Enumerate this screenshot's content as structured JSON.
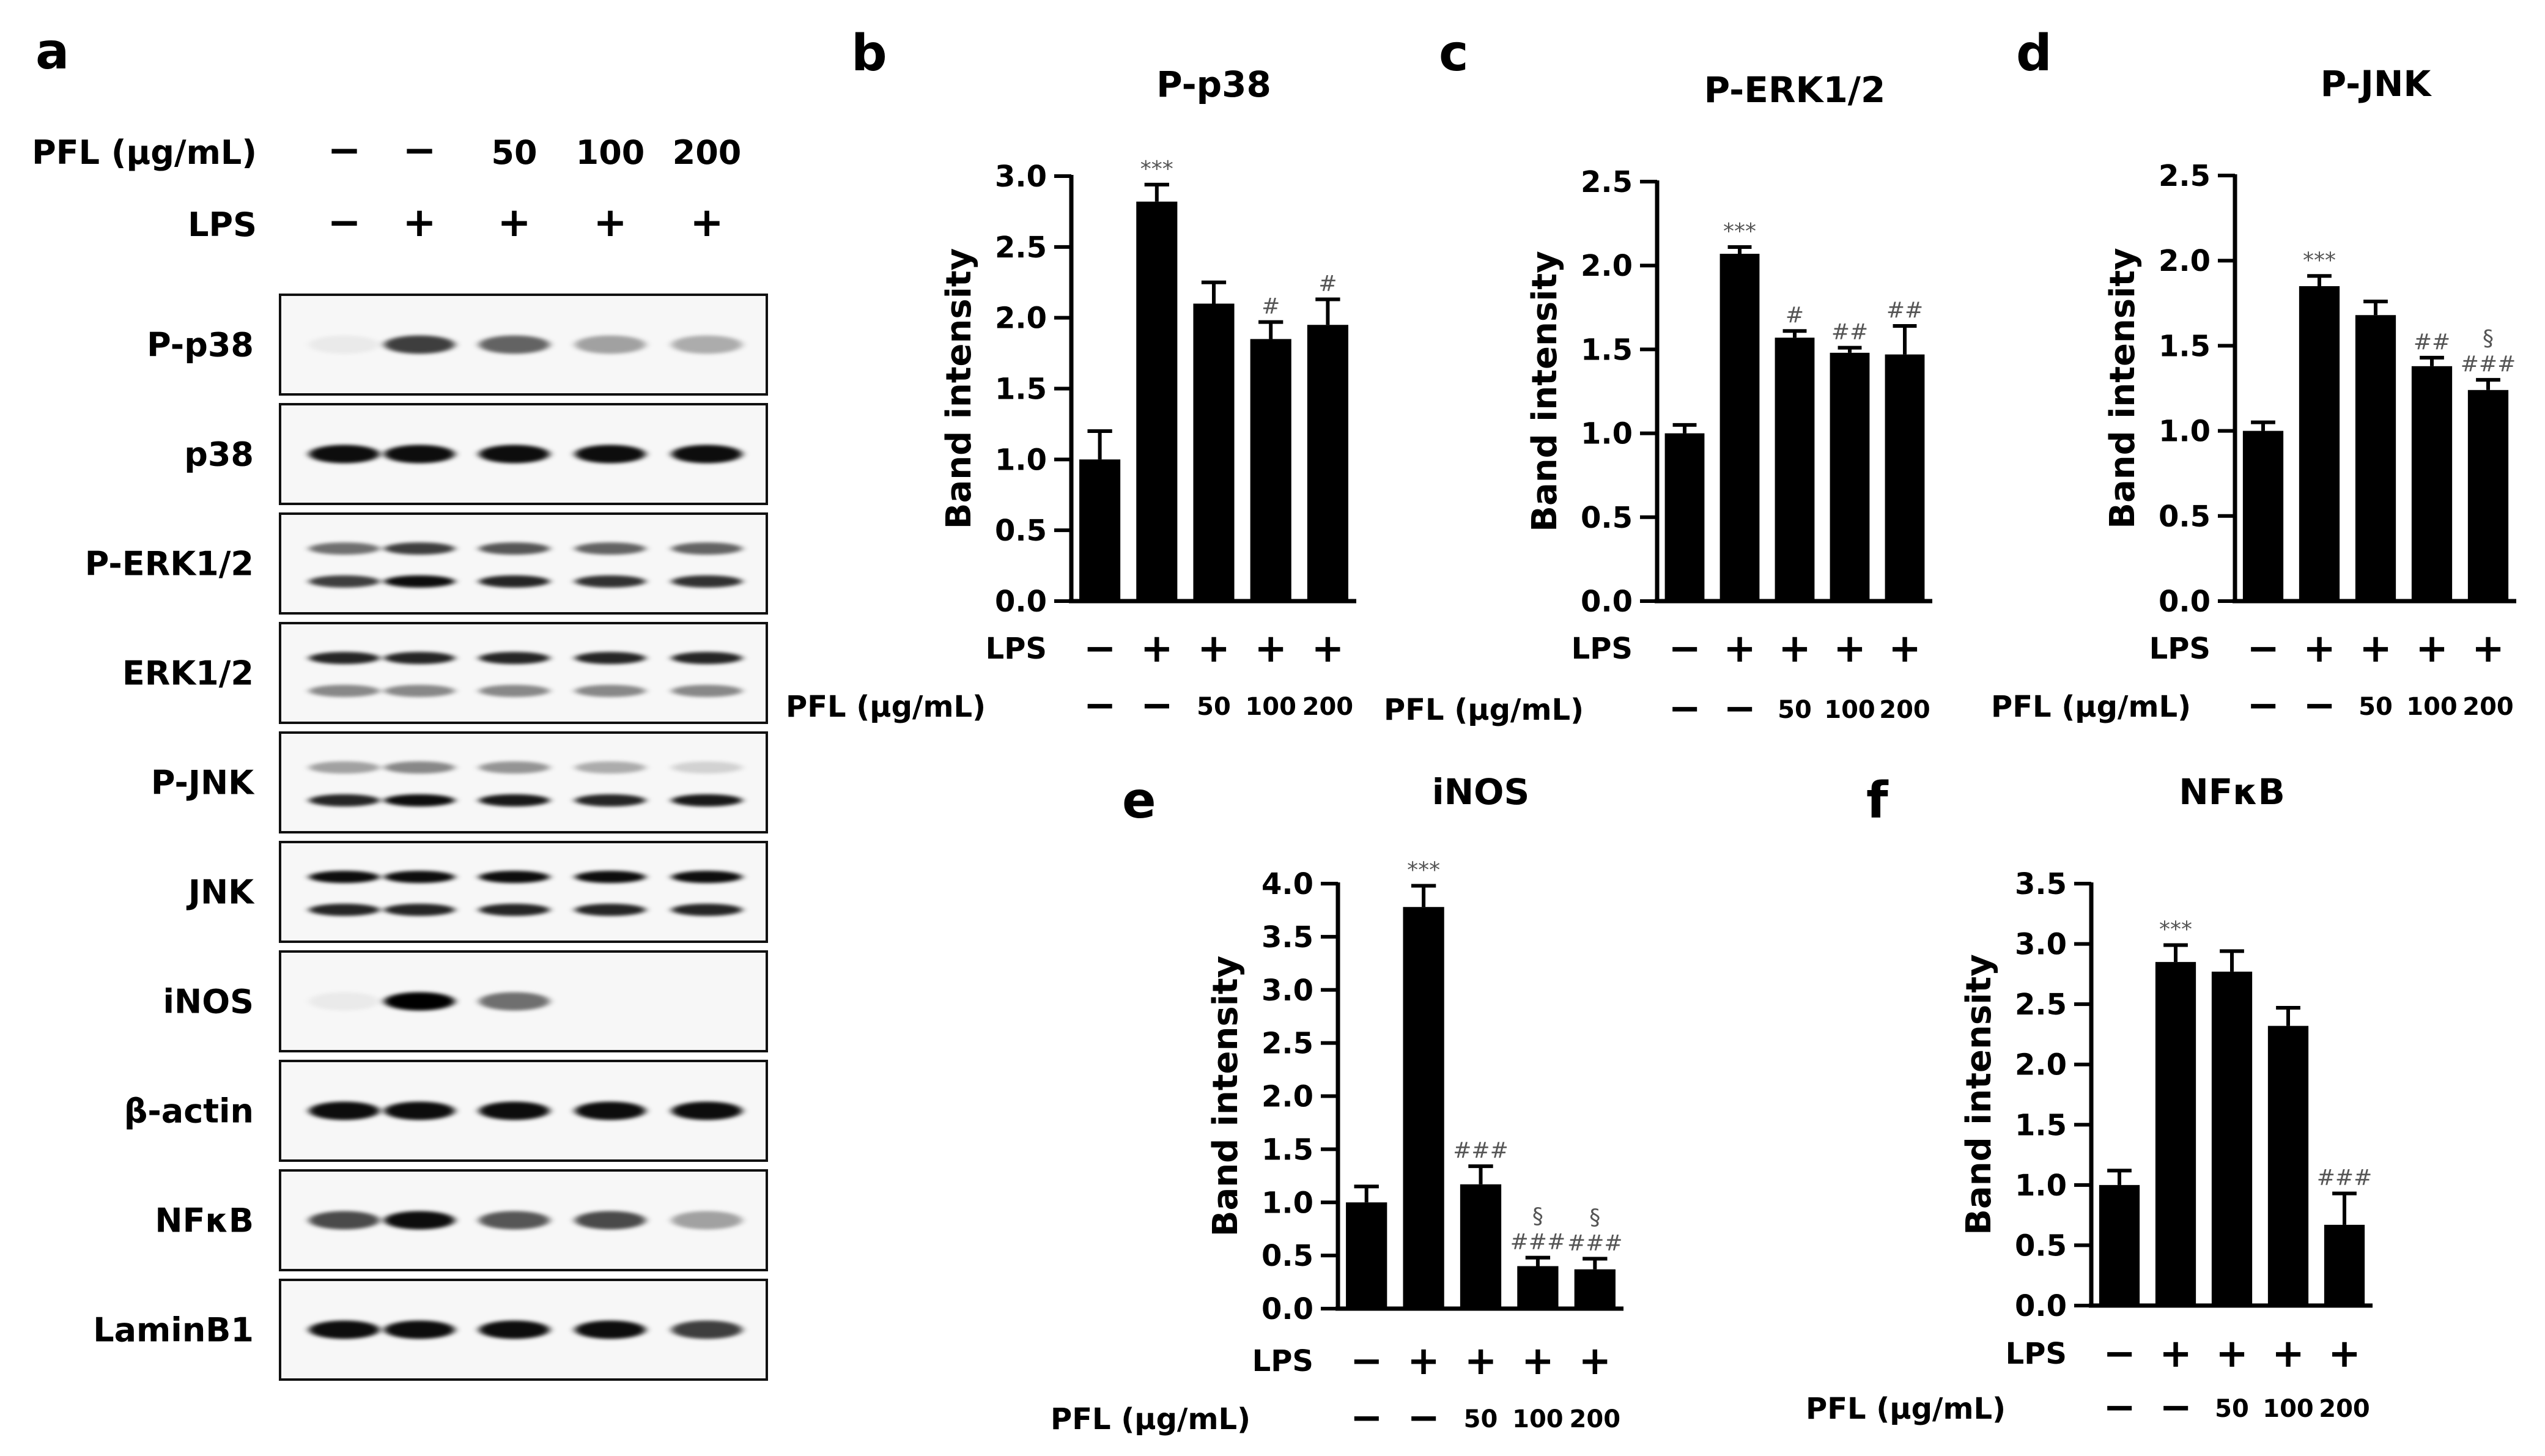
{
  "western_blot": {
    "panel_letter": "a",
    "treatment_rows": [
      {
        "label": "PFL (μg/mL)",
        "values": [
          "−",
          "−",
          "50",
          "100",
          "200"
        ]
      },
      {
        "label": "LPS",
        "values": [
          "−",
          "+",
          "+",
          "+",
          "+"
        ]
      }
    ],
    "blots": [
      {
        "label": "P-p38",
        "bands": [
          [
            0.05
          ],
          [
            0.75
          ],
          [
            0.6
          ],
          [
            0.35
          ],
          [
            0.3
          ]
        ]
      },
      {
        "label": "p38",
        "bands": [
          [
            0.95
          ],
          [
            0.95
          ],
          [
            0.95
          ],
          [
            0.95
          ],
          [
            0.95
          ]
        ]
      },
      {
        "label": "P-ERK1/2",
        "bands": [
          [
            0.55,
            0.75
          ],
          [
            0.75,
            0.95
          ],
          [
            0.65,
            0.85
          ],
          [
            0.6,
            0.8
          ],
          [
            0.6,
            0.8
          ]
        ]
      },
      {
        "label": "ERK1/2",
        "bands": [
          [
            0.85,
            0.45
          ],
          [
            0.85,
            0.45
          ],
          [
            0.85,
            0.45
          ],
          [
            0.85,
            0.45
          ],
          [
            0.85,
            0.45
          ]
        ]
      },
      {
        "label": "P-JNK",
        "bands": [
          [
            0.35,
            0.85
          ],
          [
            0.45,
            0.95
          ],
          [
            0.4,
            0.9
          ],
          [
            0.3,
            0.85
          ],
          [
            0.15,
            0.9
          ]
        ]
      },
      {
        "label": "JNK",
        "bands": [
          [
            0.95,
            0.85
          ],
          [
            0.95,
            0.85
          ],
          [
            0.95,
            0.85
          ],
          [
            0.95,
            0.85
          ],
          [
            0.95,
            0.85
          ]
        ]
      },
      {
        "label": "iNOS",
        "bands": [
          [
            0.05
          ],
          [
            1.0
          ],
          [
            0.55
          ],
          [
            0.0
          ],
          [
            0.0
          ]
        ]
      },
      {
        "label": "β-actin",
        "bands": [
          [
            0.95
          ],
          [
            0.95
          ],
          [
            0.95
          ],
          [
            0.95
          ],
          [
            0.95
          ]
        ]
      },
      {
        "label": "NFκB",
        "bands": [
          [
            0.7
          ],
          [
            0.95
          ],
          [
            0.65
          ],
          [
            0.7
          ],
          [
            0.35
          ]
        ]
      },
      {
        "label": "LaminB1",
        "bands": [
          [
            0.95
          ],
          [
            0.95
          ],
          [
            0.95
          ],
          [
            0.95
          ],
          [
            0.75
          ]
        ]
      }
    ]
  },
  "colors": {
    "bar": "#000000",
    "annotation": "#555555"
  },
  "chart_data": [
    {
      "panel_letter": "b",
      "type": "bar",
      "title": "P-p38",
      "ylabel": "Band intensity",
      "ylim": [
        0,
        3.0
      ],
      "yticks": [
        "0.0",
        "0.5",
        "1.0",
        "1.5",
        "2.0",
        "2.5",
        "3.0"
      ],
      "values": [
        1.0,
        2.82,
        2.1,
        1.85,
        1.95
      ],
      "errors": [
        0.2,
        0.12,
        0.15,
        0.12,
        0.18
      ],
      "annotations": [
        [],
        [
          "***"
        ],
        [],
        [
          "#"
        ],
        [
          "#"
        ]
      ],
      "lps": [
        "−",
        "+",
        "+",
        "+",
        "+"
      ],
      "pfl": [
        "−",
        "−",
        "50",
        "100",
        "200"
      ],
      "lps_label": "LPS",
      "pfl_label": "PFL (μg/mL)"
    },
    {
      "panel_letter": "c",
      "type": "bar",
      "title": "P-ERK1/2",
      "ylabel": "Band intensity",
      "ylim": [
        0,
        2.5
      ],
      "yticks": [
        "0.0",
        "0.5",
        "1.0",
        "1.5",
        "2.0",
        "2.5"
      ],
      "values": [
        1.0,
        2.07,
        1.57,
        1.48,
        1.47
      ],
      "errors": [
        0.05,
        0.04,
        0.04,
        0.03,
        0.17
      ],
      "annotations": [
        [],
        [
          "***"
        ],
        [
          "#"
        ],
        [
          "##"
        ],
        [
          "##"
        ]
      ],
      "lps": [
        "−",
        "+",
        "+",
        "+",
        "+"
      ],
      "pfl": [
        "−",
        "−",
        "50",
        "100",
        "200"
      ],
      "lps_label": "LPS",
      "pfl_label": "PFL (μg/mL)"
    },
    {
      "panel_letter": "d",
      "type": "bar",
      "title": "P-JNK",
      "ylabel": "Band intensity",
      "ylim": [
        0,
        2.5
      ],
      "yticks": [
        "0.0",
        "0.5",
        "1.0",
        "1.5",
        "2.0",
        "2.5"
      ],
      "values": [
        1.0,
        1.85,
        1.68,
        1.38,
        1.24
      ],
      "errors": [
        0.05,
        0.06,
        0.08,
        0.05,
        0.06
      ],
      "annotations": [
        [],
        [
          "***"
        ],
        [],
        [
          "##"
        ],
        [
          "§",
          "###"
        ]
      ],
      "lps": [
        "−",
        "+",
        "+",
        "+",
        "+"
      ],
      "pfl": [
        "−",
        "−",
        "50",
        "100",
        "200"
      ],
      "lps_label": "LPS",
      "pfl_label": "PFL (μg/mL)"
    },
    {
      "panel_letter": "e",
      "type": "bar",
      "title": "iNOS",
      "ylabel": "Band intensity",
      "ylim": [
        0,
        4.0
      ],
      "yticks": [
        "0.0",
        "0.5",
        "1.0",
        "1.5",
        "2.0",
        "2.5",
        "3.0",
        "3.5",
        "4.0"
      ],
      "values": [
        1.0,
        3.78,
        1.17,
        0.4,
        0.37
      ],
      "errors": [
        0.15,
        0.2,
        0.17,
        0.08,
        0.1
      ],
      "annotations": [
        [],
        [
          "***"
        ],
        [
          "###"
        ],
        [
          "§",
          "###"
        ],
        [
          "§",
          "###"
        ]
      ],
      "lps": [
        "−",
        "+",
        "+",
        "+",
        "+"
      ],
      "pfl": [
        "−",
        "−",
        "50",
        "100",
        "200"
      ],
      "lps_label": "LPS",
      "pfl_label": "PFL (μg/mL)"
    },
    {
      "panel_letter": "f",
      "type": "bar",
      "title": "NFκB",
      "ylabel": "Band intensity",
      "ylim": [
        0,
        3.5
      ],
      "yticks": [
        "0.0",
        "0.5",
        "1.0",
        "1.5",
        "2.0",
        "2.5",
        "3.0",
        "3.5"
      ],
      "values": [
        1.0,
        2.85,
        2.77,
        2.32,
        0.67
      ],
      "errors": [
        0.12,
        0.14,
        0.17,
        0.15,
        0.26
      ],
      "annotations": [
        [],
        [
          "***"
        ],
        [],
        [],
        [
          "###"
        ]
      ],
      "lps": [
        "−",
        "+",
        "+",
        "+",
        "+"
      ],
      "pfl": [
        "−",
        "−",
        "50",
        "100",
        "200"
      ],
      "lps_label": "LPS",
      "pfl_label": "PFL (μg/mL)"
    }
  ]
}
